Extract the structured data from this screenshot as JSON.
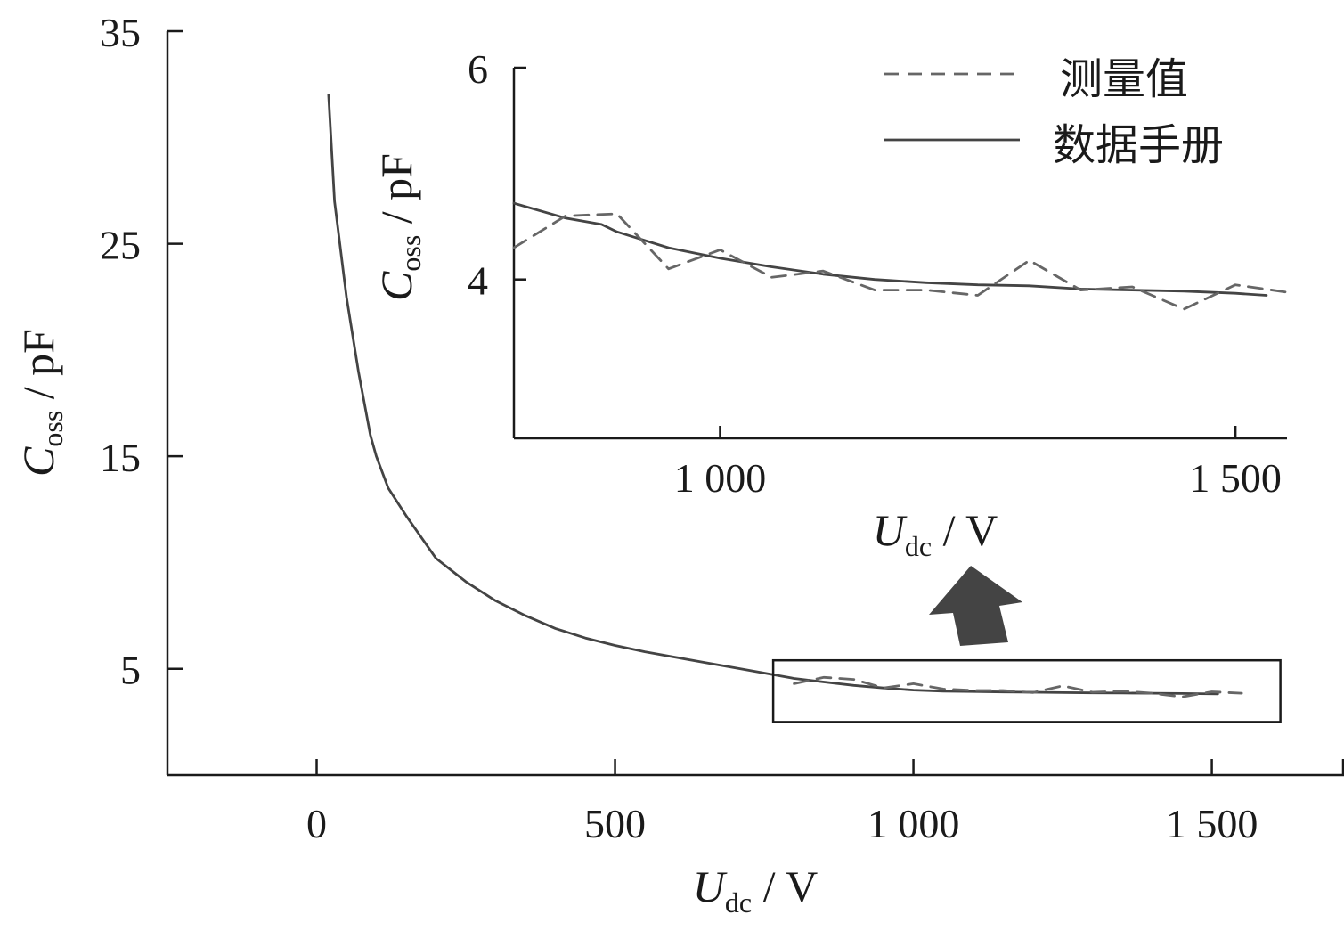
{
  "chart_data": [
    {
      "type": "line",
      "id": "main",
      "xlabel": {
        "main": "U",
        "sub": "dc",
        "unit": " / V"
      },
      "ylabel": {
        "main": "C",
        "sub": "oss",
        "unit": " / pF"
      },
      "xlim": [
        -250,
        1720
      ],
      "ylim": [
        0,
        35
      ],
      "xticks": [
        0,
        500,
        1000,
        1500
      ],
      "xtick_labels": [
        "0",
        "500",
        "1 000",
        "1 500"
      ],
      "yticks": [
        5,
        15,
        25,
        35
      ],
      "ytick_labels": [
        "5",
        "15",
        "25",
        "35"
      ],
      "legend_position": "top-right",
      "zoom_box": {
        "x": [
          765,
          1615
        ],
        "y": [
          2.5,
          5.4
        ]
      },
      "series": [
        {
          "name": "数据手册",
          "style": "solid",
          "color": "#444444",
          "x": [
            20,
            30,
            50,
            70,
            90,
            100,
            120,
            150,
            200,
            250,
            300,
            350,
            400,
            450,
            500,
            550,
            600,
            650,
            700,
            750,
            800,
            850,
            900,
            950,
            1000,
            1050,
            1100,
            1150,
            1200,
            1250,
            1300,
            1350,
            1400,
            1450,
            1510
          ],
          "y": [
            32,
            27,
            22.5,
            19,
            16,
            15,
            13.5,
            12.2,
            10.2,
            9.1,
            8.2,
            7.5,
            6.9,
            6.45,
            6.1,
            5.8,
            5.55,
            5.3,
            5.05,
            4.8,
            4.55,
            4.38,
            4.22,
            4.1,
            4.0,
            3.95,
            3.93,
            3.91,
            3.9,
            3.88,
            3.87,
            3.86,
            3.85,
            3.84,
            3.82
          ]
        },
        {
          "name": "测量值",
          "style": "dashed",
          "color": "#666666",
          "x": [
            800,
            850,
            900,
            950,
            1000,
            1050,
            1100,
            1150,
            1200,
            1250,
            1300,
            1350,
            1400,
            1450,
            1500,
            1550
          ],
          "y": [
            4.3,
            4.6,
            4.5,
            4.1,
            4.3,
            4.05,
            3.98,
            3.98,
            3.88,
            4.2,
            3.9,
            3.95,
            3.85,
            3.68,
            3.92,
            3.85
          ]
        }
      ]
    },
    {
      "type": "line",
      "id": "inset",
      "xlabel": {
        "main": "U",
        "sub": "dc",
        "unit": " / V"
      },
      "ylabel": {
        "main": "C",
        "sub": "oss",
        "unit": " / pF"
      },
      "xlim": [
        800,
        1550
      ],
      "ylim": [
        2.5,
        6
      ],
      "xticks": [
        1000,
        1500
      ],
      "xtick_labels": [
        "1 000",
        "1 500"
      ],
      "yticks": [
        4,
        6
      ],
      "ytick_labels": [
        "4",
        "6"
      ],
      "series": [
        {
          "name": "数据手册",
          "style": "solid",
          "color": "#444444",
          "x": [
            800,
            850,
            885,
            900,
            950,
            1000,
            1050,
            1100,
            1150,
            1200,
            1250,
            1300,
            1350,
            1400,
            1450,
            1500,
            1530
          ],
          "y": [
            4.72,
            4.58,
            4.52,
            4.45,
            4.3,
            4.2,
            4.12,
            4.05,
            4.0,
            3.97,
            3.95,
            3.94,
            3.91,
            3.9,
            3.89,
            3.87,
            3.85
          ]
        },
        {
          "name": "测量值",
          "style": "dashed",
          "color": "#666666",
          "x": [
            800,
            850,
            900,
            950,
            1000,
            1050,
            1100,
            1150,
            1200,
            1250,
            1300,
            1350,
            1400,
            1450,
            1500,
            1550
          ],
          "y": [
            4.3,
            4.6,
            4.62,
            4.1,
            4.28,
            4.02,
            4.08,
            3.9,
            3.9,
            3.85,
            4.18,
            3.9,
            3.93,
            3.72,
            3.95,
            3.88
          ]
        }
      ]
    }
  ]
}
